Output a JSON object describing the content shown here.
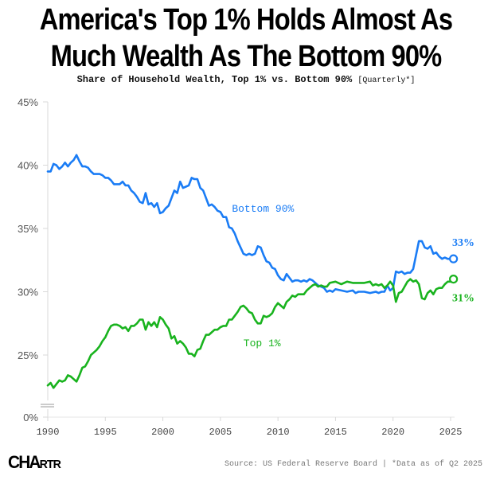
{
  "header": {
    "title_line1": "America's Top 1% Holds Almost As",
    "title_line2": "Much Wealth As The Bottom 90%",
    "subtitle": "Share of Household Wealth, Top 1% vs. Bottom 90%",
    "subtitle_note": "[Quarterly*]"
  },
  "footer": {
    "logo_big": "CHA",
    "logo_rest": "RTR",
    "source": "Source: US Federal Reserve Board | *Data as of Q2 2025"
  },
  "colors": {
    "bottom90": "#1a7cf5",
    "top1": "#19b31e",
    "axis": "#d9d9d9"
  },
  "chart_data": {
    "type": "line",
    "title": "America's Top 1% Holds Almost As Much Wealth As The Bottom 90%",
    "subtitle": "Share of Household Wealth, Top 1% vs. Bottom 90% [Quarterly*]",
    "xlabel": "",
    "ylabel": "",
    "xlim": [
      1990,
      2025.5
    ],
    "ylim": [
      22,
      45
    ],
    "y_axis_break": true,
    "yticks": [
      0,
      25,
      30,
      35,
      40,
      45
    ],
    "ytick_labels": [
      "0%",
      "25%",
      "30%",
      "35%",
      "40%",
      "45%"
    ],
    "xticks": [
      1990,
      1995,
      2000,
      2005,
      2010,
      2015,
      2020,
      2025
    ],
    "xtick_labels": [
      "1990",
      "1995",
      "2000",
      "2005",
      "2010",
      "2015",
      "2020",
      "2025"
    ],
    "grid": false,
    "legend": "inline labels",
    "series": [
      {
        "name": "Bottom 90%",
        "label": "Bottom 90%",
        "end_label": "33%",
        "color": "#1a7cf5",
        "points": [
          [
            1990.0,
            39.5
          ],
          [
            1990.25,
            39.5
          ],
          [
            1990.5,
            40.1
          ],
          [
            1990.75,
            40.0
          ],
          [
            1991.0,
            39.7
          ],
          [
            1991.25,
            39.9
          ],
          [
            1991.5,
            40.2
          ],
          [
            1991.75,
            39.9
          ],
          [
            1992.0,
            40.2
          ],
          [
            1992.25,
            40.4
          ],
          [
            1992.5,
            40.8
          ],
          [
            1992.75,
            40.3
          ],
          [
            1993.0,
            39.9
          ],
          [
            1993.25,
            39.9
          ],
          [
            1993.5,
            39.8
          ],
          [
            1993.75,
            39.5
          ],
          [
            1994.0,
            39.3
          ],
          [
            1994.5,
            39.3
          ],
          [
            1994.75,
            39.2
          ],
          [
            1995.0,
            39.0
          ],
          [
            1995.25,
            39.0
          ],
          [
            1995.5,
            38.8
          ],
          [
            1995.75,
            38.5
          ],
          [
            1996.0,
            38.5
          ],
          [
            1996.25,
            38.5
          ],
          [
            1996.5,
            38.7
          ],
          [
            1996.75,
            38.4
          ],
          [
            1997.0,
            38.4
          ],
          [
            1997.25,
            38.0
          ],
          [
            1997.5,
            37.8
          ],
          [
            1997.75,
            37.5
          ],
          [
            1998.0,
            37.1
          ],
          [
            1998.25,
            37.0
          ],
          [
            1998.5,
            37.8
          ],
          [
            1998.75,
            36.9
          ],
          [
            1999.0,
            37.0
          ],
          [
            1999.25,
            36.7
          ],
          [
            1999.5,
            37.0
          ],
          [
            1999.75,
            36.2
          ],
          [
            2000.0,
            36.3
          ],
          [
            2000.25,
            36.6
          ],
          [
            2000.5,
            36.8
          ],
          [
            2000.75,
            37.4
          ],
          [
            2001.0,
            38.0
          ],
          [
            2001.25,
            37.8
          ],
          [
            2001.5,
            38.7
          ],
          [
            2001.75,
            38.2
          ],
          [
            2002.0,
            38.3
          ],
          [
            2002.25,
            38.4
          ],
          [
            2002.5,
            39.0
          ],
          [
            2002.75,
            38.9
          ],
          [
            2003.0,
            38.9
          ],
          [
            2003.25,
            38.2
          ],
          [
            2003.5,
            38.0
          ],
          [
            2003.75,
            37.4
          ],
          [
            2004.0,
            36.8
          ],
          [
            2004.25,
            36.9
          ],
          [
            2004.5,
            36.7
          ],
          [
            2004.75,
            36.4
          ],
          [
            2005.0,
            36.3
          ],
          [
            2005.25,
            35.9
          ],
          [
            2005.5,
            35.9
          ],
          [
            2005.75,
            35.1
          ],
          [
            2006.0,
            35.0
          ],
          [
            2006.25,
            34.6
          ],
          [
            2006.5,
            34.0
          ],
          [
            2006.75,
            33.5
          ],
          [
            2007.0,
            33.0
          ],
          [
            2007.25,
            32.9
          ],
          [
            2007.5,
            33.0
          ],
          [
            2007.75,
            32.9
          ],
          [
            2008.0,
            33.0
          ],
          [
            2008.25,
            33.6
          ],
          [
            2008.5,
            33.5
          ],
          [
            2008.75,
            32.9
          ],
          [
            2009.0,
            32.4
          ],
          [
            2009.25,
            32.3
          ],
          [
            2009.5,
            31.9
          ],
          [
            2009.75,
            31.8
          ],
          [
            2010.0,
            31.3
          ],
          [
            2010.25,
            31.0
          ],
          [
            2010.5,
            30.9
          ],
          [
            2010.75,
            31.4
          ],
          [
            2011.0,
            31.1
          ],
          [
            2011.25,
            30.8
          ],
          [
            2011.5,
            30.9
          ],
          [
            2011.75,
            30.9
          ],
          [
            2012.0,
            30.8
          ],
          [
            2012.25,
            30.9
          ],
          [
            2012.5,
            30.8
          ],
          [
            2012.75,
            31.0
          ],
          [
            2013.0,
            30.9
          ],
          [
            2013.5,
            30.5
          ],
          [
            2014.0,
            30.3
          ],
          [
            2014.25,
            30.0
          ],
          [
            2014.5,
            30.1
          ],
          [
            2014.75,
            30.0
          ],
          [
            2015.0,
            30.2
          ],
          [
            2015.5,
            30.1
          ],
          [
            2016.0,
            30.0
          ],
          [
            2016.5,
            30.1
          ],
          [
            2016.75,
            29.9
          ],
          [
            2017.0,
            30.0
          ],
          [
            2017.5,
            30.0
          ],
          [
            2018.0,
            29.9
          ],
          [
            2018.5,
            30.0
          ],
          [
            2018.75,
            29.9
          ],
          [
            2019.0,
            30.0
          ],
          [
            2019.25,
            30.0
          ],
          [
            2019.5,
            30.5
          ],
          [
            2019.75,
            30.1
          ],
          [
            2020.0,
            30.3
          ],
          [
            2020.25,
            31.6
          ],
          [
            2020.5,
            31.5
          ],
          [
            2020.75,
            31.6
          ],
          [
            2021.0,
            31.4
          ],
          [
            2021.25,
            31.5
          ],
          [
            2021.5,
            31.5
          ],
          [
            2021.75,
            31.8
          ],
          [
            2022.0,
            32.9
          ],
          [
            2022.25,
            34.0
          ],
          [
            2022.5,
            34.0
          ],
          [
            2022.75,
            33.5
          ],
          [
            2023.0,
            33.4
          ],
          [
            2023.25,
            33.6
          ],
          [
            2023.5,
            33.0
          ],
          [
            2023.75,
            33.1
          ],
          [
            2024.0,
            32.8
          ],
          [
            2024.25,
            32.6
          ],
          [
            2024.5,
            32.7
          ],
          [
            2024.75,
            32.6
          ],
          [
            2025.25,
            32.6
          ]
        ]
      },
      {
        "name": "Top 1%",
        "label": "Top 1%",
        "end_label": "31%",
        "color": "#19b31e",
        "points": [
          [
            1990.0,
            22.6
          ],
          [
            1990.25,
            22.8
          ],
          [
            1990.5,
            22.4
          ],
          [
            1990.75,
            22.7
          ],
          [
            1991.0,
            23.0
          ],
          [
            1991.25,
            22.9
          ],
          [
            1991.5,
            23.0
          ],
          [
            1991.75,
            23.4
          ],
          [
            1992.0,
            23.3
          ],
          [
            1992.25,
            23.1
          ],
          [
            1992.5,
            22.9
          ],
          [
            1992.75,
            23.4
          ],
          [
            1993.0,
            24.0
          ],
          [
            1993.25,
            24.1
          ],
          [
            1993.5,
            24.5
          ],
          [
            1993.75,
            25.0
          ],
          [
            1994.0,
            25.2
          ],
          [
            1994.25,
            25.4
          ],
          [
            1994.5,
            25.7
          ],
          [
            1994.75,
            26.1
          ],
          [
            1995.0,
            26.4
          ],
          [
            1995.25,
            26.9
          ],
          [
            1995.5,
            27.3
          ],
          [
            1995.75,
            27.4
          ],
          [
            1996.0,
            27.4
          ],
          [
            1996.25,
            27.3
          ],
          [
            1996.5,
            27.1
          ],
          [
            1996.75,
            27.2
          ],
          [
            1997.0,
            26.9
          ],
          [
            1997.25,
            27.3
          ],
          [
            1997.5,
            27.3
          ],
          [
            1997.75,
            27.5
          ],
          [
            1998.0,
            27.8
          ],
          [
            1998.25,
            27.8
          ],
          [
            1998.5,
            27.0
          ],
          [
            1998.75,
            27.6
          ],
          [
            1999.0,
            27.3
          ],
          [
            1999.25,
            27.6
          ],
          [
            1999.5,
            27.2
          ],
          [
            1999.75,
            28.0
          ],
          [
            2000.0,
            27.8
          ],
          [
            2000.25,
            27.4
          ],
          [
            2000.5,
            27.1
          ],
          [
            2000.75,
            26.3
          ],
          [
            2001.0,
            26.5
          ],
          [
            2001.25,
            25.9
          ],
          [
            2001.5,
            26.1
          ],
          [
            2001.75,
            25.9
          ],
          [
            2002.0,
            25.6
          ],
          [
            2002.25,
            25.1
          ],
          [
            2002.5,
            25.1
          ],
          [
            2002.75,
            24.9
          ],
          [
            2003.0,
            25.4
          ],
          [
            2003.25,
            25.5
          ],
          [
            2003.5,
            26.1
          ],
          [
            2003.75,
            26.6
          ],
          [
            2004.0,
            26.6
          ],
          [
            2004.25,
            26.8
          ],
          [
            2004.5,
            27.0
          ],
          [
            2004.75,
            27.0
          ],
          [
            2005.0,
            27.2
          ],
          [
            2005.25,
            27.3
          ],
          [
            2005.5,
            27.3
          ],
          [
            2005.75,
            27.8
          ],
          [
            2006.0,
            27.8
          ],
          [
            2006.25,
            28.1
          ],
          [
            2006.5,
            28.4
          ],
          [
            2006.75,
            28.8
          ],
          [
            2007.0,
            28.9
          ],
          [
            2007.25,
            28.7
          ],
          [
            2007.5,
            28.4
          ],
          [
            2007.75,
            28.3
          ],
          [
            2008.0,
            27.8
          ],
          [
            2008.25,
            27.5
          ],
          [
            2008.5,
            27.5
          ],
          [
            2008.75,
            28.1
          ],
          [
            2009.0,
            28.0
          ],
          [
            2009.25,
            28.1
          ],
          [
            2009.5,
            28.3
          ],
          [
            2009.75,
            28.8
          ],
          [
            2010.0,
            29.1
          ],
          [
            2010.25,
            28.9
          ],
          [
            2010.5,
            28.7
          ],
          [
            2010.75,
            29.2
          ],
          [
            2011.0,
            29.4
          ],
          [
            2011.25,
            29.7
          ],
          [
            2011.5,
            29.6
          ],
          [
            2011.75,
            29.8
          ],
          [
            2012.0,
            29.8
          ],
          [
            2012.25,
            29.8
          ],
          [
            2012.5,
            30.1
          ],
          [
            2012.75,
            30.3
          ],
          [
            2013.0,
            30.5
          ],
          [
            2013.25,
            30.6
          ],
          [
            2013.5,
            30.4
          ],
          [
            2013.75,
            30.5
          ],
          [
            2014.0,
            30.4
          ],
          [
            2014.25,
            30.4
          ],
          [
            2014.5,
            30.7
          ],
          [
            2015.0,
            30.8
          ],
          [
            2015.25,
            30.7
          ],
          [
            2015.5,
            30.6
          ],
          [
            2016.0,
            30.8
          ],
          [
            2016.5,
            30.7
          ],
          [
            2017.0,
            30.7
          ],
          [
            2017.5,
            30.7
          ],
          [
            2018.0,
            30.8
          ],
          [
            2018.25,
            30.5
          ],
          [
            2018.5,
            30.6
          ],
          [
            2018.75,
            30.5
          ],
          [
            2019.0,
            30.6
          ],
          [
            2019.25,
            30.3
          ],
          [
            2019.5,
            30.5
          ],
          [
            2019.75,
            30.8
          ],
          [
            2020.0,
            30.5
          ],
          [
            2020.25,
            29.2
          ],
          [
            2020.5,
            29.9
          ],
          [
            2020.75,
            30.0
          ],
          [
            2021.0,
            30.4
          ],
          [
            2021.25,
            30.8
          ],
          [
            2021.5,
            31.0
          ],
          [
            2021.75,
            30.8
          ],
          [
            2022.0,
            30.9
          ],
          [
            2022.25,
            30.6
          ],
          [
            2022.5,
            29.5
          ],
          [
            2022.75,
            29.4
          ],
          [
            2023.0,
            29.9
          ],
          [
            2023.25,
            30.1
          ],
          [
            2023.5,
            29.8
          ],
          [
            2023.75,
            30.2
          ],
          [
            2024.0,
            30.3
          ],
          [
            2024.25,
            30.3
          ],
          [
            2024.5,
            30.6
          ],
          [
            2024.75,
            30.8
          ],
          [
            2025.0,
            30.8
          ],
          [
            2025.25,
            31.0
          ]
        ]
      }
    ]
  }
}
